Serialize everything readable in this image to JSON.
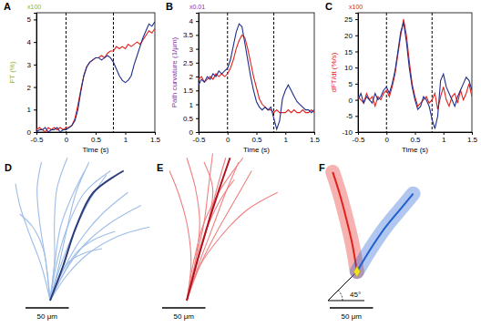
{
  "chart_data": [
    {
      "type": "line",
      "title": "A",
      "subtitle": "x100",
      "x_label": "Time (s)",
      "y_label": "FT (%)",
      "x": [
        -0.5,
        -0.45,
        -0.4,
        -0.35,
        -0.3,
        -0.25,
        -0.2,
        -0.15,
        -0.1,
        -0.05,
        0,
        0.05,
        0.1,
        0.15,
        0.2,
        0.25,
        0.3,
        0.35,
        0.4,
        0.45,
        0.5,
        0.55,
        0.6,
        0.65,
        0.7,
        0.75,
        0.8,
        0.85,
        0.9,
        0.95,
        1,
        1.05,
        1.1,
        1.15,
        1.2,
        1.25,
        1.3,
        1.35,
        1.4,
        1.45,
        1.5
      ],
      "xlim": [
        -0.5,
        1.5
      ],
      "xticks": [
        -0.5,
        0,
        0.5,
        1,
        1.5
      ],
      "ylim": [
        0,
        5.3
      ],
      "yticks": [
        0,
        1,
        2,
        3,
        4,
        5
      ],
      "vlines": [
        0,
        0.8
      ],
      "series": [
        {
          "color": "#e3211c",
          "values": [
            0.1,
            0.2,
            0.1,
            0.0,
            0.2,
            0.1,
            0.2,
            0.1,
            0.2,
            0.1,
            0.2,
            0.2,
            0.3,
            0.6,
            1.2,
            1.9,
            2.5,
            2.9,
            3.1,
            3.2,
            3.3,
            3.3,
            3.4,
            3.3,
            3.5,
            3.6,
            3.6,
            3.8,
            3.7,
            3.8,
            3.7,
            3.9,
            3.8,
            3.9,
            4.0,
            3.9,
            4.1,
            4.3,
            4.5,
            4.4,
            4.6
          ]
        },
        {
          "color": "#1f2d8a",
          "values": [
            0.0,
            0.1,
            0.1,
            0.2,
            0.0,
            0.1,
            0.1,
            0.2,
            0.0,
            0.1,
            0.1,
            0.2,
            0.3,
            0.5,
            1.0,
            1.8,
            2.5,
            2.9,
            3.1,
            3.2,
            3.3,
            3.3,
            3.2,
            3.3,
            3.4,
            3.3,
            3.1,
            2.8,
            2.5,
            2.3,
            2.2,
            2.3,
            2.5,
            3.0,
            3.4,
            3.8,
            4.2,
            4.5,
            4.8,
            4.7,
            4.9
          ]
        }
      ]
    },
    {
      "type": "line",
      "title": "B",
      "subtitle": "x0.01",
      "x_label": "Time (s)",
      "y_label": "Path curvature (1/μm)",
      "x": [
        -0.5,
        -0.45,
        -0.4,
        -0.35,
        -0.3,
        -0.25,
        -0.2,
        -0.15,
        -0.1,
        -0.05,
        0,
        0.05,
        0.1,
        0.15,
        0.2,
        0.25,
        0.3,
        0.35,
        0.4,
        0.45,
        0.5,
        0.55,
        0.6,
        0.65,
        0.7,
        0.75,
        0.8,
        0.85,
        0.9,
        0.95,
        1,
        1.05,
        1.1,
        1.15,
        1.2,
        1.25,
        1.3,
        1.35,
        1.4,
        1.45,
        1.5
      ],
      "xlim": [
        -0.5,
        1.5
      ],
      "xticks": [
        -0.5,
        0,
        0.5,
        1,
        1.5
      ],
      "ylim": [
        0,
        4.3
      ],
      "yticks": [
        0,
        0.5,
        1,
        1.5,
        2,
        2.5,
        3,
        3.5,
        4
      ],
      "vlines": [
        0,
        0.8
      ],
      "series": [
        {
          "color": "#e3211c",
          "values": [
            1.9,
            2.0,
            1.8,
            1.9,
            2.0,
            1.9,
            2.1,
            2.0,
            2.1,
            2.0,
            2.1,
            2.3,
            2.6,
            3.0,
            3.3,
            3.5,
            3.4,
            3.0,
            2.5,
            2.0,
            1.6,
            1.2,
            1.0,
            0.9,
            0.8,
            0.8,
            0.7,
            0.8,
            0.7,
            0.7,
            0.7,
            0.8,
            0.7,
            0.8,
            0.7,
            0.7,
            0.8,
            0.7,
            0.7,
            0.8,
            0.7
          ]
        },
        {
          "color": "#1f2d8a",
          "values": [
            1.7,
            1.9,
            1.8,
            2.0,
            1.9,
            2.1,
            2.0,
            2.2,
            2.1,
            2.2,
            2.3,
            2.6,
            3.1,
            3.6,
            3.9,
            3.8,
            3.2,
            2.6,
            2.0,
            1.5,
            1.1,
            0.9,
            0.8,
            0.9,
            0.8,
            0.9,
            0.5,
            0.1,
            0.4,
            1.2,
            1.5,
            1.7,
            1.5,
            1.3,
            1.1,
            1.0,
            0.9,
            0.8,
            0.8,
            0.7,
            0.8
          ]
        }
      ]
    },
    {
      "type": "line",
      "title": "C",
      "subtitle": "x100",
      "x_label": "Time (s)",
      "y_label": "dFT/dt (%/s)",
      "x": [
        -0.5,
        -0.45,
        -0.4,
        -0.35,
        -0.3,
        -0.25,
        -0.2,
        -0.15,
        -0.1,
        -0.05,
        0,
        0.05,
        0.1,
        0.15,
        0.2,
        0.25,
        0.3,
        0.35,
        0.4,
        0.45,
        0.5,
        0.55,
        0.6,
        0.65,
        0.7,
        0.75,
        0.8,
        0.85,
        0.9,
        0.95,
        1,
        1.05,
        1.1,
        1.15,
        1.2,
        1.25,
        1.3,
        1.35,
        1.4,
        1.45,
        1.5
      ],
      "xlim": [
        -0.5,
        1.5
      ],
      "xticks": [
        -0.5,
        0,
        0.5,
        1,
        1.5
      ],
      "ylim": [
        -10,
        27
      ],
      "yticks": [
        -10,
        -5,
        0,
        5,
        10,
        15,
        20,
        25
      ],
      "vlines": [
        0,
        0.8
      ],
      "series": [
        {
          "color": "#e3211c",
          "values": [
            1,
            0,
            -1,
            2,
            0,
            1,
            -2,
            1,
            0,
            2,
            3,
            1,
            4,
            8,
            14,
            20,
            25,
            20,
            12,
            5,
            1,
            -2,
            -1,
            0,
            1,
            -1,
            0,
            2,
            -3,
            1,
            4,
            0,
            -2,
            1,
            2,
            -1,
            3,
            0,
            2,
            5,
            1
          ]
        },
        {
          "color": "#1f2d8a",
          "values": [
            0,
            2,
            -1,
            1,
            0,
            -1,
            2,
            0,
            1,
            3,
            4,
            2,
            5,
            9,
            15,
            21,
            24,
            18,
            10,
            4,
            0,
            -3,
            -2,
            1,
            0,
            -2,
            -6,
            -9,
            -5,
            6,
            8,
            4,
            2,
            0,
            -2,
            1,
            3,
            5,
            7,
            6,
            3
          ]
        }
      ]
    },
    {
      "type": "trajectory",
      "title": "D",
      "scale_bar": {
        "value": 50,
        "label": "50 μm"
      },
      "series": [
        {
          "color": "#9ebde8",
          "line_style": "solid",
          "x": [
            0,
            -10,
            -25,
            -35,
            -40
          ],
          "values": [
            0,
            40,
            80,
            110,
            135
          ]
        },
        {
          "color": "#9ebde8",
          "line_style": "solid",
          "x": [
            0,
            -5,
            -12,
            -15,
            -10
          ],
          "values": [
            0,
            45,
            90,
            130,
            160
          ]
        },
        {
          "color": "#9ebde8",
          "line_style": "solid",
          "x": [
            0,
            5,
            5,
            8,
            20
          ],
          "values": [
            0,
            45,
            90,
            130,
            165
          ]
        },
        {
          "color": "#9ebde8",
          "line_style": "solid",
          "x": [
            0,
            10,
            20,
            30,
            45
          ],
          "values": [
            0,
            40,
            85,
            125,
            160
          ]
        },
        {
          "color": "#9ebde8",
          "line_style": "solid",
          "x": [
            0,
            12,
            28,
            45,
            65
          ],
          "values": [
            0,
            40,
            80,
            115,
            145
          ]
        },
        {
          "color": "#9ebde8",
          "line_style": "solid",
          "x": [
            0,
            15,
            35,
            60,
            90
          ],
          "values": [
            0,
            35,
            70,
            100,
            125
          ]
        },
        {
          "color": "#9ebde8",
          "line_style": "solid",
          "x": [
            0,
            18,
            40,
            70,
            105
          ],
          "values": [
            0,
            35,
            65,
            90,
            110
          ]
        },
        {
          "color": "#9ebde8",
          "line_style": "solid",
          "x": [
            0,
            20,
            45,
            80,
            115
          ],
          "values": [
            0,
            30,
            55,
            75,
            85
          ]
        },
        {
          "color": "#9ebde8",
          "line_style": "solid",
          "x": [
            0,
            15,
            30,
            50,
            75
          ],
          "values": [
            0,
            30,
            55,
            70,
            80
          ]
        },
        {
          "color": "#9ebde8",
          "line_style": "solid",
          "x": [
            0,
            10,
            22,
            40,
            60
          ],
          "values": [
            0,
            25,
            45,
            55,
            60
          ]
        },
        {
          "color": "#9ebde8",
          "line_style": "solid",
          "x": [
            0,
            -3,
            -8,
            -20,
            -35
          ],
          "values": [
            0,
            30,
            60,
            85,
            100
          ]
        },
        {
          "color": "#9ebde8",
          "line_style": "solid",
          "x": [
            0,
            5,
            12,
            25,
            40
          ],
          "values": [
            0,
            40,
            85,
            120,
            150
          ]
        },
        {
          "color": "#9ebde8",
          "line_style": "solid",
          "x": [
            0,
            8,
            20,
            40,
            70
          ],
          "values": [
            0,
            45,
            85,
            125,
            150
          ]
        },
        {
          "color": "#2c3e7a",
          "line_style": "bold",
          "x": [
            0,
            15,
            30,
            50,
            85
          ],
          "values": [
            0,
            40,
            85,
            125,
            150
          ]
        }
      ]
    },
    {
      "type": "trajectory",
      "title": "E",
      "scale_bar": {
        "value": 50,
        "label": "50 μm"
      },
      "series": [
        {
          "color": "#f08080",
          "line_style": "solid",
          "x": [
            0,
            10,
            15,
            10,
            0
          ],
          "values": [
            0,
            45,
            90,
            130,
            165
          ]
        },
        {
          "color": "#f08080",
          "line_style": "solid",
          "x": [
            0,
            10,
            20,
            25,
            30
          ],
          "values": [
            0,
            45,
            90,
            130,
            170
          ]
        },
        {
          "color": "#f08080",
          "line_style": "solid",
          "x": [
            0,
            12,
            25,
            35,
            45
          ],
          "values": [
            0,
            45,
            90,
            130,
            165
          ]
        },
        {
          "color": "#f08080",
          "line_style": "solid",
          "x": [
            0,
            15,
            30,
            45,
            60
          ],
          "values": [
            0,
            45,
            85,
            125,
            160
          ]
        },
        {
          "color": "#f08080",
          "line_style": "solid",
          "x": [
            0,
            15,
            35,
            55,
            75
          ],
          "values": [
            0,
            40,
            80,
            115,
            150
          ]
        },
        {
          "color": "#f08080",
          "line_style": "solid",
          "x": [
            0,
            12,
            25,
            30,
            20
          ],
          "values": [
            0,
            45,
            90,
            130,
            160
          ]
        },
        {
          "color": "#f08080",
          "line_style": "solid",
          "x": [
            0,
            5,
            0,
            -10,
            -20
          ],
          "values": [
            0,
            45,
            90,
            125,
            150
          ]
        },
        {
          "color": "#f08080",
          "line_style": "solid",
          "x": [
            0,
            15,
            40,
            70,
            105
          ],
          "values": [
            0,
            40,
            75,
            105,
            125
          ]
        },
        {
          "color": "#f08080",
          "line_style": "solid",
          "x": [
            0,
            10,
            22,
            38,
            55
          ],
          "values": [
            0,
            40,
            80,
            115,
            140
          ]
        },
        {
          "color": "#f08080",
          "line_style": "solid",
          "x": [
            0,
            8,
            20,
            40,
            65
          ],
          "values": [
            0,
            45,
            90,
            130,
            165
          ]
        },
        {
          "color": "#b3121f",
          "line_style": "bold",
          "x": [
            0,
            12,
            25,
            38,
            50
          ],
          "values": [
            0,
            45,
            90,
            130,
            165
          ]
        }
      ]
    },
    {
      "type": "trajectory",
      "title": "F",
      "scale_bar": {
        "value": 50,
        "label": "50 μm"
      },
      "annotations": [
        {
          "value": 45,
          "label": "45°"
        }
      ],
      "series": [
        {
          "color": "#e3211c",
          "line_style": "band",
          "x": [
            0,
            -5,
            -12,
            -20,
            -28
          ],
          "values": [
            0,
            30,
            60,
            90,
            115
          ]
        },
        {
          "color": "#1f5fd0",
          "line_style": "band",
          "x": [
            0,
            15,
            32,
            50,
            65
          ],
          "values": [
            0,
            25,
            50,
            72,
            90
          ]
        }
      ]
    }
  ]
}
